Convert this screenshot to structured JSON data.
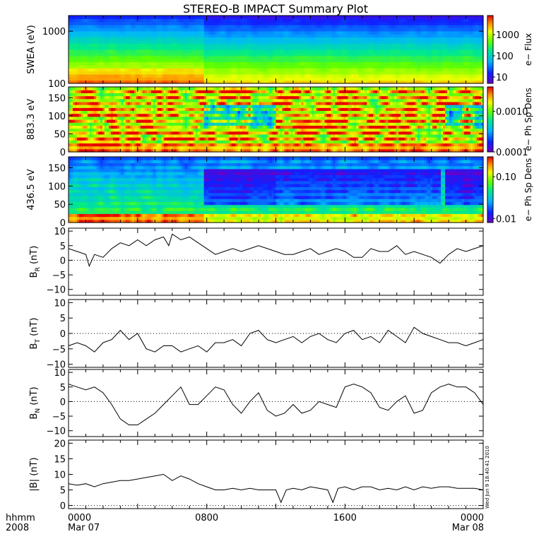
{
  "chart_data": {
    "title": "STEREO-B IMPACT Summary Plot",
    "x_axis": {
      "row_label": "hhmm",
      "year_label": "2008",
      "ticks": [
        {
          "hours": 0,
          "label": "0000",
          "sublabel": "Mar 07"
        },
        {
          "hours": 8,
          "label": "0800",
          "sublabel": ""
        },
        {
          "hours": 16,
          "label": "1600",
          "sublabel": ""
        },
        {
          "hours": 24,
          "label": "0000",
          "sublabel": "Mar 08"
        }
      ],
      "range_hours": [
        0,
        24
      ]
    },
    "panels": [
      {
        "id": "swea",
        "type": "heatmap",
        "scale": "log",
        "ylabel": "SWEA (eV)",
        "ylim": [
          100,
          2000
        ],
        "yticks": [
          {
            "value": 100,
            "label": "100"
          },
          {
            "value": 1000,
            "label": "1000"
          }
        ],
        "colorbar": {
          "label": "e− Flux",
          "scale": "log",
          "range": [
            5,
            8000
          ],
          "ticks": [
            {
              "value": 10,
              "label": "10"
            },
            {
              "value": 100,
              "label": "100"
            },
            {
              "value": 1000,
              "label": "1000"
            }
          ]
        },
        "regime_change_hours": 7.85
      },
      {
        "id": "pad883",
        "type": "heatmap",
        "scale": "linear",
        "ylabel": "883.3 eV",
        "ylim": [
          0,
          180
        ],
        "yticks": [
          {
            "value": 0,
            "label": "0"
          },
          {
            "value": 50,
            "label": "50"
          },
          {
            "value": 100,
            "label": "100"
          },
          {
            "value": 150,
            "label": "150"
          }
        ],
        "colorbar": {
          "label": "e− Ph Sp Dens",
          "scale": "log",
          "range": [
            0.0001,
            0.004
          ],
          "ticks": [
            {
              "value": 0.0001,
              "label": "0.0001"
            },
            {
              "value": 0.001,
              "label": "0.0010"
            }
          ]
        },
        "depletion_intervals_hours": [
          [
            7.85,
            12
          ],
          [
            21.8,
            24
          ]
        ]
      },
      {
        "id": "pad436",
        "type": "heatmap",
        "scale": "linear",
        "ylabel": "436.5 eV",
        "ylim": [
          0,
          180
        ],
        "yticks": [
          {
            "value": 0,
            "label": "0"
          },
          {
            "value": 50,
            "label": "50"
          },
          {
            "value": 100,
            "label": "100"
          },
          {
            "value": 150,
            "label": "150"
          }
        ],
        "colorbar": {
          "label": "e− Ph Sp Dens",
          "scale": "log",
          "range": [
            0.008,
            0.3
          ],
          "ticks": [
            {
              "value": 0.01,
              "label": "0.01"
            },
            {
              "value": 0.1,
              "label": "0.10"
            }
          ]
        },
        "depletion_intervals_hours": [
          [
            7.85,
            21.5
          ],
          [
            21.8,
            24
          ]
        ]
      },
      {
        "id": "br",
        "type": "line",
        "ylabel_main": "B",
        "ylabel_sub": "R",
        "ylabel_unit": "(nT)",
        "ylim": [
          -12,
          11
        ],
        "yticks": [
          {
            "value": -10,
            "label": "−10"
          },
          {
            "value": -5,
            "label": "−5"
          },
          {
            "value": 0,
            "label": "0"
          },
          {
            "value": 5,
            "label": "5"
          },
          {
            "value": 10,
            "label": "10"
          }
        ],
        "x": [
          0,
          0.5,
          1,
          1.2,
          1.5,
          2,
          2.5,
          3,
          3.5,
          4,
          4.5,
          5,
          5.5,
          5.8,
          6,
          6.5,
          7,
          7.5,
          8,
          8.5,
          9,
          9.5,
          10,
          10.5,
          11,
          11.5,
          12,
          12.5,
          13,
          13.5,
          14,
          14.5,
          15,
          15.5,
          16,
          16.5,
          17,
          17.5,
          18,
          18.5,
          19,
          19.5,
          20,
          20.5,
          21,
          21.5,
          22,
          22.5,
          23,
          23.5,
          24
        ],
        "values": [
          4,
          3,
          2,
          -2,
          2,
          1,
          4,
          6,
          5,
          7,
          5,
          7,
          8,
          5,
          9,
          7,
          8,
          6,
          4,
          2,
          3,
          4,
          3,
          4,
          5,
          4,
          3,
          2,
          2,
          3,
          4,
          2,
          3,
          4,
          3,
          1,
          1,
          4,
          3,
          3,
          5,
          2,
          3,
          2,
          1,
          -1,
          2,
          4,
          3,
          4,
          5
        ]
      },
      {
        "id": "bt",
        "type": "line",
        "ylabel_main": "B",
        "ylabel_sub": "T",
        "ylabel_unit": "(nT)",
        "ylim": [
          -11,
          11
        ],
        "yticks": [
          {
            "value": -10,
            "label": "−10"
          },
          {
            "value": -5,
            "label": "−5"
          },
          {
            "value": 0,
            "label": "0"
          },
          {
            "value": 5,
            "label": "5"
          },
          {
            "value": 10,
            "label": "10"
          }
        ],
        "x": [
          0,
          0.5,
          1,
          1.5,
          2,
          2.5,
          3,
          3.5,
          4,
          4.5,
          5,
          5.5,
          6,
          6.5,
          7,
          7.5,
          8,
          8.5,
          9,
          9.5,
          10,
          10.5,
          11,
          11.5,
          12,
          12.5,
          13,
          13.5,
          14,
          14.5,
          15,
          15.5,
          16,
          16.5,
          17,
          17.5,
          18,
          18.5,
          19,
          19.5,
          20,
          20.5,
          21,
          21.5,
          22,
          22.5,
          23,
          23.5,
          24
        ],
        "values": [
          -4,
          -3,
          -4,
          -6,
          -3,
          -2,
          1,
          -2,
          0,
          -5,
          -6,
          -4,
          -4,
          -6,
          -5,
          -4,
          -6,
          -3,
          -3,
          -2,
          -4,
          0,
          1,
          -2,
          -3,
          -2,
          -1,
          -3,
          -1,
          0,
          -2,
          -3,
          0,
          1,
          -2,
          -1,
          -3,
          1,
          -1,
          -3,
          2,
          0,
          -1,
          -2,
          -3,
          -3,
          -4,
          -3,
          -2
        ]
      },
      {
        "id": "bn",
        "type": "line",
        "ylabel_main": "B",
        "ylabel_sub": "N",
        "ylabel_unit": "(nT)",
        "ylim": [
          -12,
          11
        ],
        "yticks": [
          {
            "value": -10,
            "label": "−10"
          },
          {
            "value": -5,
            "label": "−5"
          },
          {
            "value": 0,
            "label": "0"
          },
          {
            "value": 5,
            "label": "5"
          },
          {
            "value": 10,
            "label": "10"
          }
        ],
        "x": [
          0,
          0.5,
          1,
          1.5,
          2,
          2.5,
          3,
          3.5,
          4,
          4.5,
          5,
          5.5,
          6,
          6.5,
          7,
          7.5,
          8,
          8.5,
          9,
          9.5,
          10,
          10.5,
          11,
          11.5,
          12,
          12.5,
          13,
          13.5,
          14,
          14.5,
          15,
          15.5,
          16,
          16.5,
          17,
          17.5,
          18,
          18.5,
          19,
          19.5,
          20,
          20.5,
          21,
          21.5,
          22,
          22.5,
          23,
          23.5,
          24
        ],
        "values": [
          6,
          5,
          4,
          5,
          3,
          -1,
          -6,
          -8,
          -8,
          -6,
          -4,
          -1,
          2,
          5,
          -1,
          -1,
          2,
          5,
          4,
          -1,
          -4,
          0,
          3,
          -3,
          -5,
          -4,
          -1,
          -4,
          -3,
          0,
          -1,
          -2,
          5,
          6,
          5,
          3,
          -2,
          -3,
          0,
          2,
          -4,
          -3,
          3,
          5,
          6,
          5,
          5,
          3,
          -1
        ]
      },
      {
        "id": "btot",
        "type": "line",
        "ylabel_main": "|B|",
        "ylabel_sub": "",
        "ylabel_unit": "(nT)",
        "ylim": [
          -1,
          21
        ],
        "yticks": [
          {
            "value": 0,
            "label": "0"
          },
          {
            "value": 5,
            "label": "5"
          },
          {
            "value": 10,
            "label": "10"
          },
          {
            "value": 15,
            "label": "15"
          },
          {
            "value": 20,
            "label": "20"
          }
        ],
        "x": [
          0,
          0.5,
          1,
          1.5,
          2,
          2.5,
          3,
          3.5,
          4,
          4.5,
          5,
          5.5,
          6,
          6.5,
          7,
          7.5,
          8,
          8.5,
          9,
          9.5,
          10,
          10.5,
          11,
          11.5,
          12,
          12.3,
          12.6,
          13,
          13.5,
          14,
          14.5,
          15,
          15.3,
          15.6,
          16,
          16.5,
          17,
          17.5,
          18,
          18.5,
          19,
          19.5,
          20,
          20.5,
          21,
          21.5,
          22,
          22.5,
          23,
          23.5,
          24
        ],
        "values": [
          7,
          6.5,
          7,
          6,
          7,
          7.5,
          8,
          8,
          8.5,
          9,
          9.5,
          10,
          8,
          9.5,
          8.5,
          7,
          6,
          5,
          5,
          5.5,
          5,
          5.5,
          5,
          5,
          5,
          1,
          5,
          5.5,
          5,
          6,
          5.5,
          5,
          1,
          5.5,
          6,
          5,
          6,
          6,
          5,
          5.5,
          5,
          6,
          5,
          6,
          5.5,
          6,
          6,
          5.5,
          5.5,
          5.5,
          5
        ]
      }
    ]
  },
  "stamp": "Wed Jun  9 18:40:41 2010"
}
